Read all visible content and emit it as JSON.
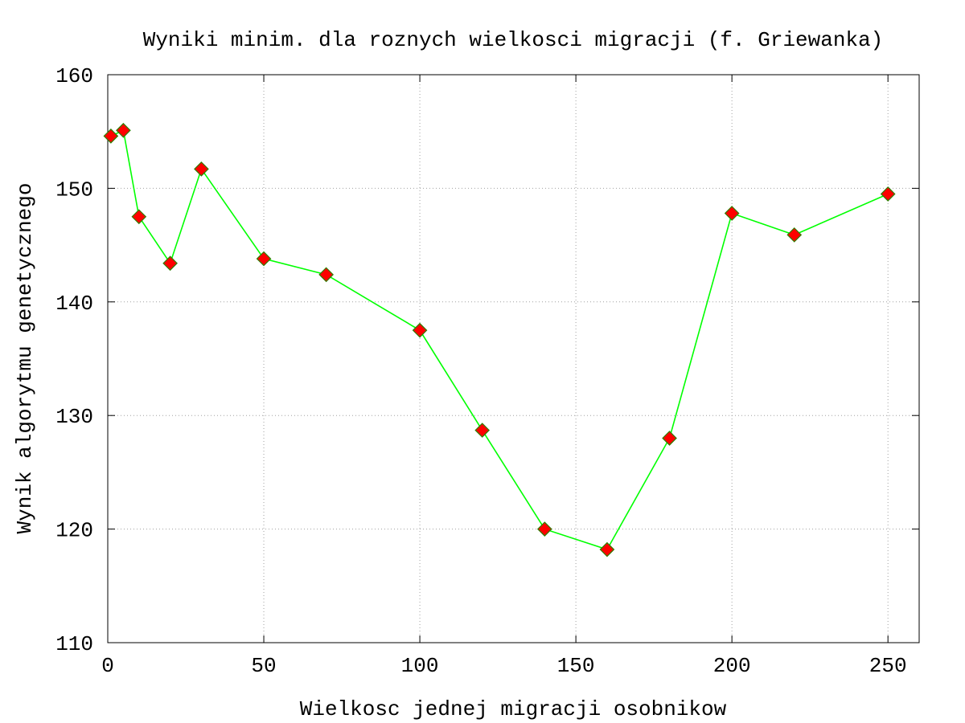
{
  "chart_data": {
    "type": "line",
    "title": "Wyniki minim. dla roznych wielkosci migracji (f. Griewanka)",
    "xlabel": "Wielkosc jednej migracji osobnikow",
    "ylabel": "Wynik algorytmu genetycznego",
    "xlim": [
      0,
      260
    ],
    "ylim": [
      110,
      160
    ],
    "xticks": [
      0,
      50,
      100,
      150,
      200,
      250
    ],
    "yticks": [
      110,
      120,
      130,
      140,
      150,
      160
    ],
    "grid": true,
    "legend": "none",
    "series": [
      {
        "line_color": "#00ff00",
        "marker_fill": "#ff0000",
        "marker_stroke": "#2e7d00",
        "marker": "diamond",
        "x": [
          1,
          5,
          10,
          20,
          30,
          50,
          70,
          100,
          120,
          140,
          160,
          180,
          200,
          220,
          250
        ],
        "y": [
          154.6,
          155.1,
          147.5,
          143.4,
          151.7,
          143.8,
          142.4,
          137.5,
          128.7,
          120.0,
          118.2,
          128.0,
          147.8,
          145.9,
          149.5
        ]
      }
    ]
  }
}
